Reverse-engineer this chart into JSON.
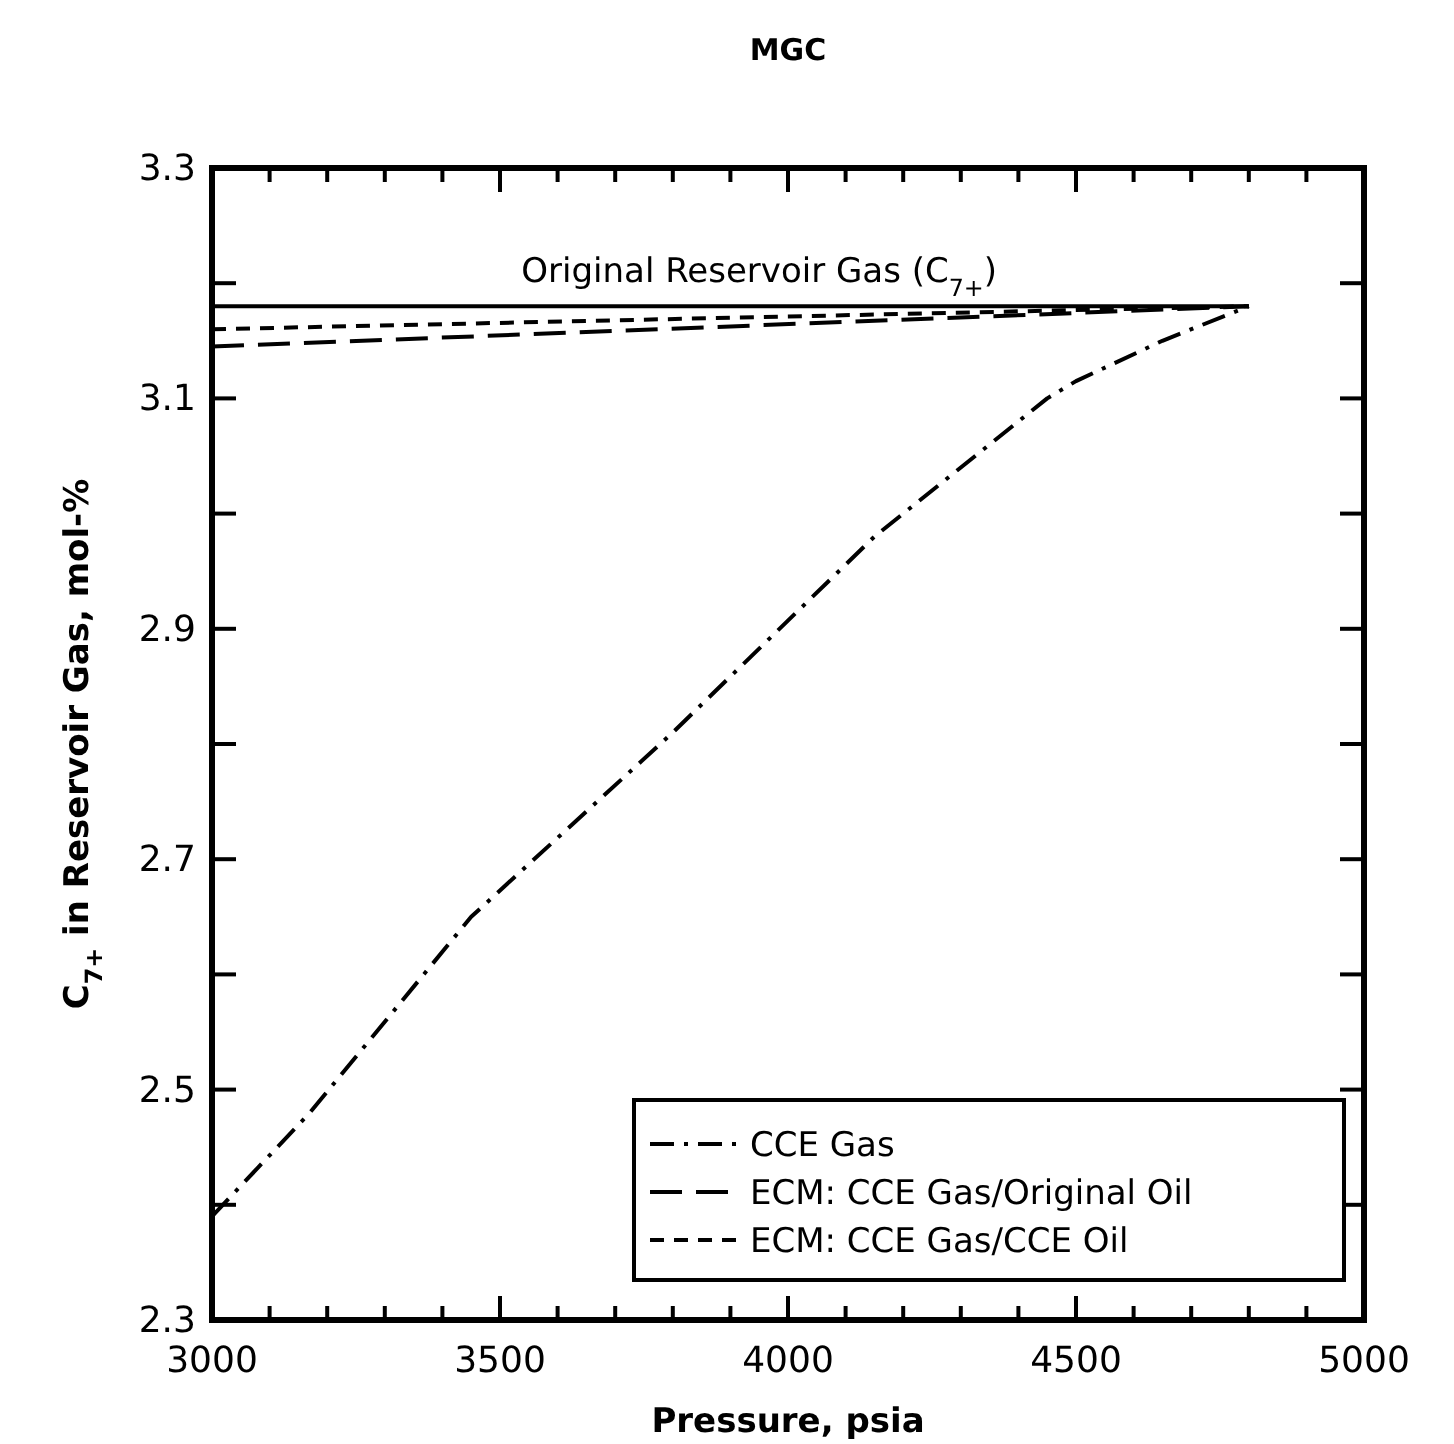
{
  "chart_data": {
    "type": "line",
    "title": "MGC",
    "xlabel": "Pressure, psia",
    "ylabel": "C$_{7+}$ in Reservoir Gas, mol-%",
    "xlim": [
      3000,
      5000
    ],
    "xticks": [
      3000,
      {
        "value": 3100,
        "label": null
      },
      {
        "value": 3200,
        "label": null
      },
      {
        "value": 3300,
        "label": null
      },
      {
        "value": 3400,
        "label": null
      },
      3500,
      {
        "value": 3600,
        "label": null
      },
      {
        "value": 3700,
        "label": null
      },
      {
        "value": 3800,
        "label": null
      },
      {
        "value": 3900,
        "label": null
      },
      4000,
      {
        "value": 4100,
        "label": null
      },
      {
        "value": 4200,
        "label": null
      },
      {
        "value": 4300,
        "label": null
      },
      {
        "value": 4400,
        "label": null
      },
      4500,
      {
        "value": 4600,
        "label": null
      },
      {
        "value": 4700,
        "label": null
      },
      {
        "value": 4800,
        "label": null
      },
      {
        "value": 4900,
        "label": null
      },
      5000
    ],
    "ylim": [
      2.3,
      3.3
    ],
    "yticks": [
      {
        "value": 2.3,
        "label": "2.3"
      },
      {
        "value": 2.4,
        "label": null
      },
      {
        "value": 2.5,
        "label": "2.5"
      },
      {
        "value": 2.6,
        "label": null
      },
      {
        "value": 2.7,
        "label": "2.7"
      },
      {
        "value": 2.8,
        "label": null
      },
      {
        "value": 2.9,
        "label": "2.9"
      },
      {
        "value": 3.0,
        "label": null
      },
      {
        "value": 3.1,
        "label": "3.1"
      },
      {
        "value": 3.2,
        "label": null
      },
      {
        "value": 3.3,
        "label": "3.3"
      }
    ],
    "annotations": [
      {
        "text": "Original Reservoir Gas (C$_{7+}$)",
        "x": 3950,
        "y": 3.18
      }
    ],
    "grid": false,
    "legend": "bottom right",
    "marker": "none",
    "series": [
      {
        "color": "#000000",
        "line_style": "solid",
        "x": [
          3000,
          4800
        ],
        "values": [
          3.18,
          3.18
        ]
      },
      {
        "name": "CCE Gas",
        "color": "#000000",
        "line_style": "dashdot",
        "x": [
          3000,
          3170,
          3450,
          3800,
          4150,
          4450,
          4500,
          4650,
          4800
        ],
        "values": [
          2.39,
          2.48,
          2.65,
          2.81,
          2.98,
          3.1,
          3.115,
          3.15,
          3.18
        ]
      },
      {
        "name": "ECM: CCE Gas/Original Oil",
        "color": "#000000",
        "line_style": "longdash",
        "x": [
          3000,
          4800
        ],
        "values": [
          3.145,
          3.18
        ]
      },
      {
        "name": "ECM: CCE Gas/CCE Oil",
        "color": "#000000",
        "line_style": "dashed",
        "x": [
          3000,
          4800
        ],
        "values": [
          3.16,
          3.18
        ]
      }
    ]
  }
}
